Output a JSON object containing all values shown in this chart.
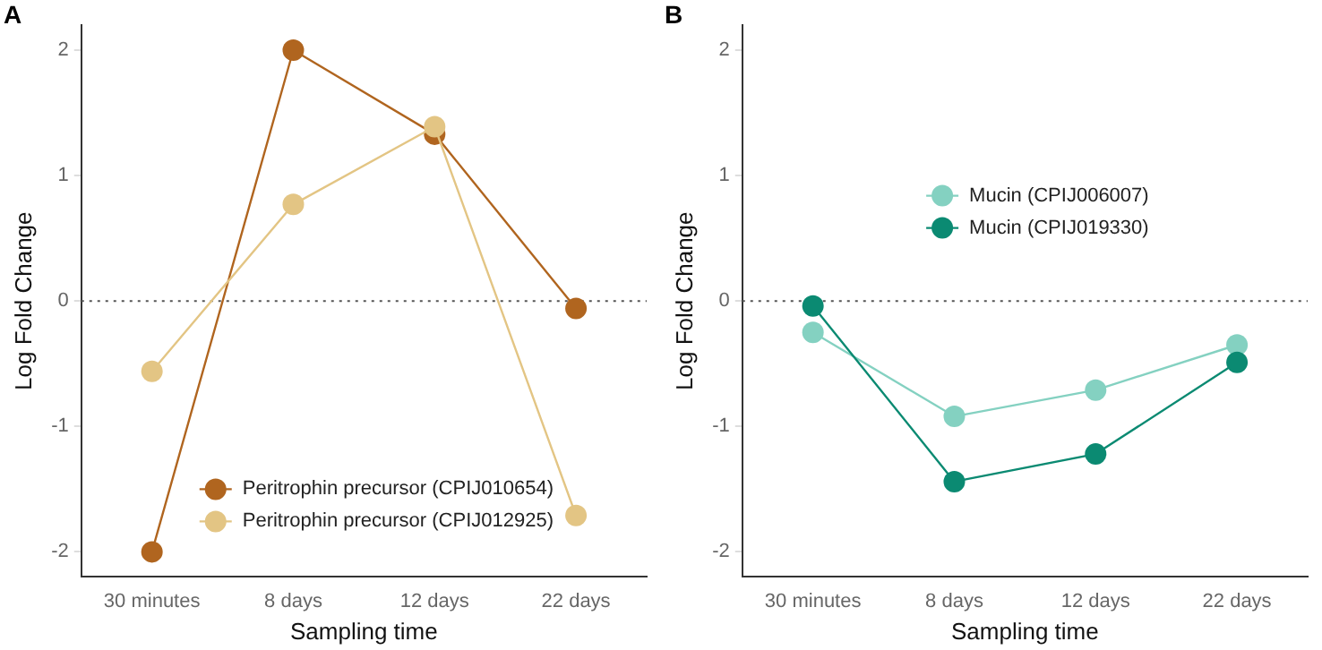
{
  "chart_data": [
    {
      "type": "line",
      "title": "A",
      "xlabel": "Sampling time",
      "ylabel": "Log Fold Change",
      "categories": [
        "30 minutes",
        "8 days",
        "12 days",
        "22 days"
      ],
      "series": [
        {
          "name": "Peritrophin precursor (CPIJ010654)",
          "color": "#b0651f",
          "values": [
            -2.0,
            2.0,
            1.33,
            -0.06
          ]
        },
        {
          "name": "Peritrophin precursor (CPIJ012925)",
          "color": "#e3c584",
          "values": [
            -0.56,
            0.77,
            1.39,
            -1.71
          ]
        }
      ],
      "ylim": [
        -2.2,
        2.2
      ],
      "yticks": [
        -2,
        -1,
        0,
        1,
        2
      ],
      "grid": false,
      "legend": "bottom",
      "marker": "circle",
      "ref_lines": [
        {
          "axis": "y",
          "value": 0,
          "color": "#555555",
          "line_style": "dotted"
        }
      ]
    },
    {
      "type": "line",
      "title": "B",
      "xlabel": "Sampling time",
      "ylabel": "Log Fold Change",
      "categories": [
        "30 minutes",
        "8 days",
        "12 days",
        "22 days"
      ],
      "series": [
        {
          "name": "Mucin (CPIJ006007)",
          "color": "#84d1c1",
          "values": [
            -0.25,
            -0.92,
            -0.71,
            -0.35
          ]
        },
        {
          "name": "Mucin (CPIJ019330)",
          "color": "#0b8a72",
          "values": [
            -0.04,
            -1.44,
            -1.22,
            -0.49
          ]
        }
      ],
      "ylim": [
        -2.2,
        2.2
      ],
      "yticks": [
        -2,
        -1,
        0,
        1,
        2
      ],
      "grid": false,
      "legend": "top",
      "marker": "circle",
      "ref_lines": [
        {
          "axis": "y",
          "value": 0,
          "color": "#555555",
          "line_style": "dotted"
        }
      ]
    }
  ]
}
